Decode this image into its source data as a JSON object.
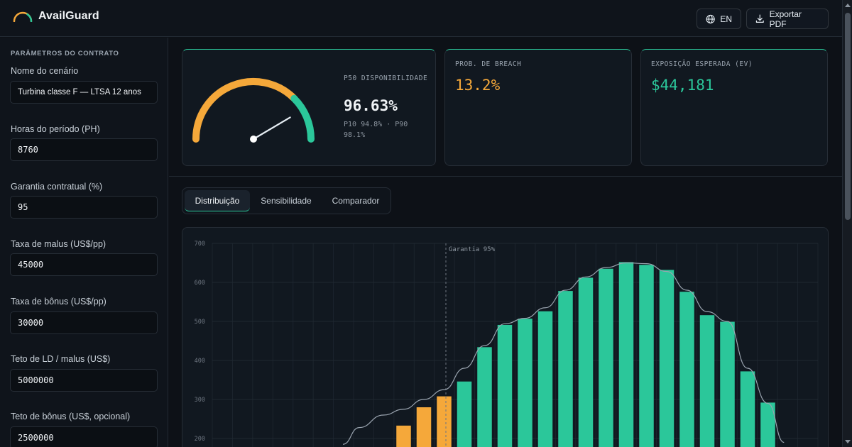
{
  "app": {
    "name": "AvailGuard"
  },
  "header": {
    "lang_label": "EN",
    "export_label": "Exportar PDF"
  },
  "sidebar": {
    "title": "PARÂMETROS DO CONTRATO",
    "fields": [
      {
        "label": "Nome do cenário",
        "value": "Turbina classe F — LTSA 12 anos"
      },
      {
        "label": "Horas do período (PH)",
        "value": "8760"
      },
      {
        "label": "Garantia contratual (%)",
        "value": "95"
      },
      {
        "label": "Taxa de malus (US$/pp)",
        "value": "45000"
      },
      {
        "label": "Taxa de bônus (US$/pp)",
        "value": "30000"
      },
      {
        "label": "Teto de LD / malus (US$)",
        "value": "5000000"
      },
      {
        "label": "Teto de bônus (US$, opcional)",
        "value": "2500000"
      }
    ]
  },
  "cards": {
    "p50": {
      "label": "P50 DISPONIBILIDADE",
      "value": "96.63%",
      "range": "P10 94.8% · P90 98.1%",
      "gauge_fraction": 0.83
    },
    "breach": {
      "label": "PROB. DE BREACH",
      "value": "13.2%",
      "color": "#f5a83a"
    },
    "ev": {
      "label": "EXPOSIÇÃO ESPERADA (EV)",
      "value": "$44,181",
      "color": "#2bc79a"
    }
  },
  "tabs": [
    {
      "label": "Distribuição",
      "active": true
    },
    {
      "label": "Sensibilidade",
      "active": false
    },
    {
      "label": "Comparador",
      "active": false
    }
  ],
  "colors": {
    "accent": "#2bc79a",
    "warning": "#f5a83a"
  },
  "chart_data": {
    "type": "bar",
    "ylim": [
      0,
      700
    ],
    "y_ticks": [
      200,
      300,
      400,
      500,
      600,
      700
    ],
    "annotation": "Garantia 95%",
    "bars": [
      {
        "value": 233,
        "breach": true
      },
      {
        "value": 280,
        "breach": true
      },
      {
        "value": 308,
        "breach": true
      },
      {
        "value": 346,
        "breach": false
      },
      {
        "value": 434,
        "breach": false
      },
      {
        "value": 491,
        "breach": false
      },
      {
        "value": 507,
        "breach": false
      },
      {
        "value": 526,
        "breach": false
      },
      {
        "value": 578,
        "breach": false
      },
      {
        "value": 612,
        "breach": false
      },
      {
        "value": 635,
        "breach": false
      },
      {
        "value": 652,
        "breach": false
      },
      {
        "value": 645,
        "breach": false
      },
      {
        "value": 632,
        "breach": false
      },
      {
        "value": 576,
        "breach": false
      },
      {
        "value": 516,
        "breach": false
      },
      {
        "value": 499,
        "breach": false
      },
      {
        "value": 372,
        "breach": false
      },
      {
        "value": 292,
        "breach": false
      }
    ],
    "curve": [
      {
        "i": -3.0,
        "v": 185
      },
      {
        "i": -2.2,
        "v": 228
      },
      {
        "i": -1.0,
        "v": 260
      },
      {
        "i": 0.0,
        "v": 275
      },
      {
        "i": 1.0,
        "v": 300
      },
      {
        "i": 2.0,
        "v": 325
      },
      {
        "i": 3.0,
        "v": 380
      },
      {
        "i": 4.0,
        "v": 438
      },
      {
        "i": 5.0,
        "v": 494
      },
      {
        "i": 6.0,
        "v": 508
      },
      {
        "i": 7.0,
        "v": 535
      },
      {
        "i": 8.0,
        "v": 580
      },
      {
        "i": 9.0,
        "v": 614
      },
      {
        "i": 10.0,
        "v": 638
      },
      {
        "i": 11.0,
        "v": 650
      },
      {
        "i": 12.0,
        "v": 648
      },
      {
        "i": 13.0,
        "v": 628
      },
      {
        "i": 14.0,
        "v": 580
      },
      {
        "i": 15.0,
        "v": 525
      },
      {
        "i": 16.0,
        "v": 500
      },
      {
        "i": 17.0,
        "v": 380
      },
      {
        "i": 18.0,
        "v": 290
      },
      {
        "i": 18.8,
        "v": 190
      }
    ]
  }
}
